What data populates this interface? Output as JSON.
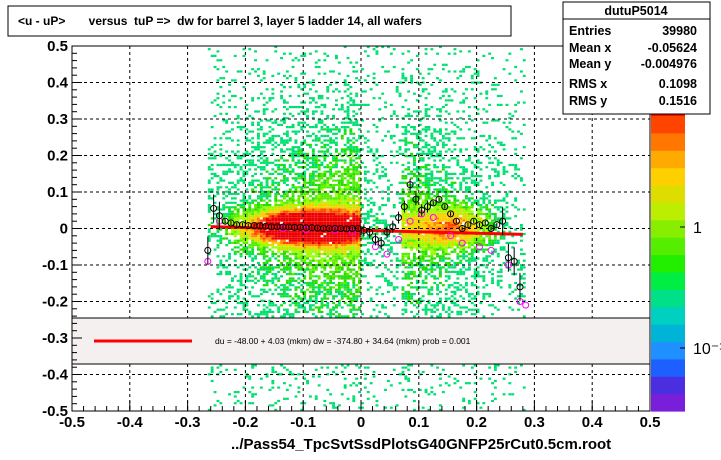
{
  "title": "<u - uP>       versus  tuP =>  dw for barrel 3, layer 5 ladder 14, all wafers",
  "stats": {
    "name": "dutuP5014",
    "rows": [
      {
        "label": "Entries",
        "value": "39980"
      },
      {
        "label": "Mean x",
        "value": "-0.05624"
      },
      {
        "label": "Mean y",
        "value": "-0.004976"
      },
      {
        "label": "RMS x",
        "value": "0.1098"
      },
      {
        "label": "RMS y",
        "value": "0.1516"
      }
    ]
  },
  "fit_text": "du =  -48.00 +  4.03 (mkm) dw = -374.80 +  34.64 (mkm) prob = 0.001",
  "colors": {
    "fit_line": "#ff0000",
    "profile_black": "#000000",
    "profile_magenta": "#ff00ff",
    "legend_bg": "#f5f0f0"
  },
  "chart_data": {
    "type": "heatmap",
    "xlabel": "../Pass54_TpcSvtSsdPlotsG40GNFP25rCut0.5cm.root",
    "xlim": [
      -0.5,
      0.5
    ],
    "ylim": [
      -0.5,
      0.5
    ],
    "x_ticks": [
      "-0.5",
      "-0.4",
      "-0.3",
      "-0.2",
      "-0.1",
      "0",
      "0.1",
      "0.2",
      "0.3",
      "0.4",
      "0.5"
    ],
    "y_ticks": [
      "-0.5",
      "-0.4",
      "-0.3",
      "-0.2",
      "-0.1",
      "0",
      "0.1",
      "0.2",
      "0.3",
      "0.4",
      "0.5"
    ],
    "grid": true,
    "log_z": true,
    "palette_labels": [
      "10",
      "1",
      "10⁻¹"
    ],
    "fit_line": {
      "x": [
        -0.26,
        0.28
      ],
      "y": [
        0.005,
        -0.016
      ]
    },
    "profile_black": {
      "x": [
        -0.265,
        -0.255,
        -0.245,
        -0.235,
        -0.225,
        -0.215,
        -0.205,
        -0.195,
        -0.185,
        -0.175,
        -0.165,
        -0.155,
        -0.145,
        -0.135,
        -0.125,
        -0.115,
        -0.105,
        -0.095,
        -0.085,
        -0.075,
        -0.065,
        -0.055,
        -0.045,
        -0.035,
        -0.025,
        -0.015,
        -0.005,
        0.005,
        0.015,
        0.025,
        0.035,
        0.045,
        0.055,
        0.065,
        0.075,
        0.085,
        0.095,
        0.105,
        0.115,
        0.125,
        0.135,
        0.145,
        0.155,
        0.165,
        0.175,
        0.185,
        0.195,
        0.205,
        0.215,
        0.225,
        0.235,
        0.245,
        0.255,
        0.265,
        0.275
      ],
      "y": [
        -0.06,
        0.055,
        0.035,
        0.02,
        0.015,
        0.01,
        0.01,
        0.008,
        0.008,
        0.007,
        0.006,
        0.005,
        0.005,
        0.004,
        0.004,
        0.003,
        0.003,
        0.002,
        0.002,
        0.001,
        0.0,
        0.0,
        0.0,
        0.0,
        -0.001,
        0.0,
        0.0,
        -0.005,
        -0.01,
        -0.03,
        -0.04,
        -0.01,
        0.005,
        0.03,
        0.06,
        0.12,
        0.08,
        0.05,
        0.06,
        0.07,
        0.08,
        0.06,
        0.04,
        0.02,
        0.0,
        0.01,
        0.02,
        0.01,
        0.015,
        0.0,
        0.01,
        0.02,
        -0.08,
        -0.09,
        -0.16
      ]
    },
    "profile_magenta": {
      "x": [
        -0.265,
        -0.245,
        -0.215,
        -0.135,
        -0.095,
        -0.045,
        -0.015,
        0.025,
        0.045,
        0.065,
        0.085,
        0.105,
        0.125,
        0.155,
        0.175,
        0.205,
        0.225,
        0.255,
        0.275,
        0.285
      ],
      "y": [
        -0.09,
        0.02,
        0.01,
        0.0,
        -0.003,
        -0.005,
        -0.01,
        -0.05,
        -0.07,
        -0.03,
        0.02,
        0.04,
        0.03,
        -0.02,
        -0.04,
        -0.05,
        -0.06,
        -0.1,
        -0.2,
        -0.21
      ]
    }
  }
}
